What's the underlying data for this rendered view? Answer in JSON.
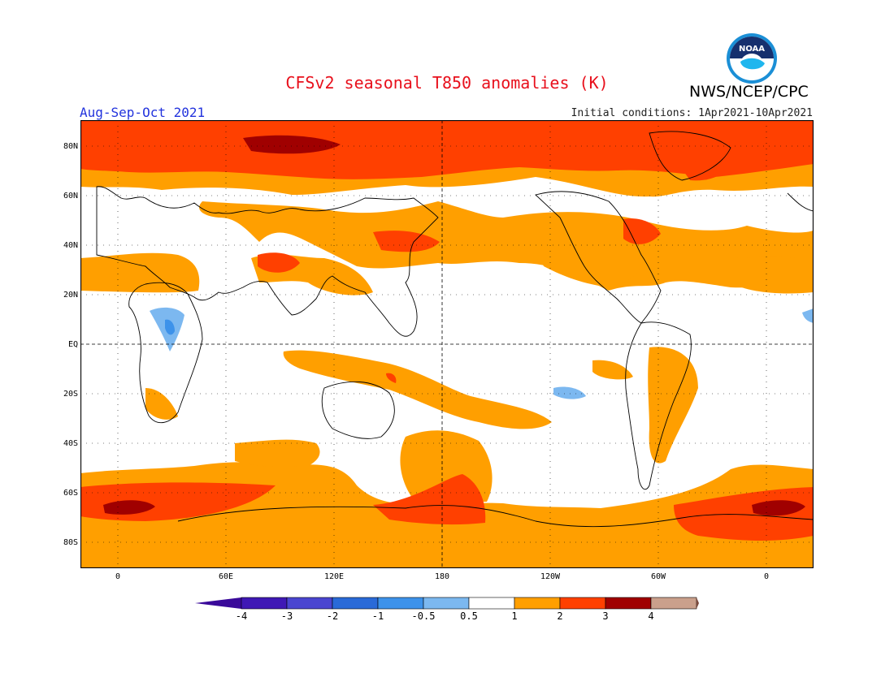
{
  "header": {
    "title": "CFSv2 seasonal T850 anomalies (K)",
    "agency": "NWS/NCEP/CPC",
    "period": "Aug-Sep-Oct 2021",
    "initial_conditions": "Initial conditions: 1Apr2021-10Apr2021",
    "logo_text": "NOAA"
  },
  "axes": {
    "lat_labels": [
      "80N",
      "60N",
      "40N",
      "20N",
      "EQ",
      "20S",
      "40S",
      "60S",
      "80S"
    ],
    "lon_labels": [
      "0",
      "60E",
      "120E",
      "180",
      "120W",
      "60W",
      "0"
    ]
  },
  "legend": {
    "labels": [
      "-4",
      "-3",
      "-2",
      "-1",
      "-0.5",
      "0.5",
      "1",
      "2",
      "3",
      "4"
    ],
    "colors": [
      "#3f18b5",
      "#4a45d0",
      "#2a6ad8",
      "#3d92ea",
      "#7cb8f0",
      "#ffffff",
      "#ff9f00",
      "#ff4000",
      "#a00000",
      "#caa08c",
      "#8a5a4a"
    ],
    "low_end_color": "#3a0a9a",
    "high_end_color": "#7a4a3e"
  },
  "colors": {
    "title": "#e8101c",
    "period": "#2233dd",
    "anom_0_5_1": "#ff9f00",
    "anom_1_2": "#ff4000",
    "anom_2_3": "#a00000",
    "anom_neg_1_0_5": "#7cb8f0",
    "anom_neg_2_1": "#3d92ea"
  }
}
